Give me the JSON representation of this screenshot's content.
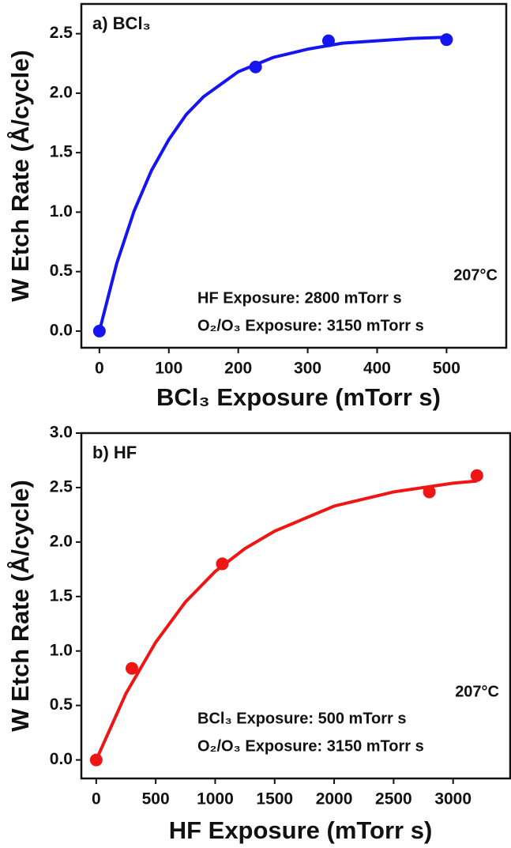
{
  "chart_data": [
    {
      "type": "scatter",
      "title": "a) BCl₃",
      "x_label": "BCl₃ Exposure (mTorr s)",
      "y_label": "W Etch Rate (Å/cycle)",
      "annotations": [
        "207°C",
        "HF Exposure: 2800 mTorr s",
        "O₂/O₃ Exposure: 3150 mTorr s"
      ],
      "xlim": [
        -26,
        586
      ],
      "ylim": [
        -0.14,
        2.75
      ],
      "xticks": [
        0,
        100,
        200,
        300,
        400,
        500
      ],
      "yticks": [
        {
          "value": 0,
          "label": "0.0"
        },
        0.5,
        {
          "value": 1,
          "label": "1.0"
        },
        1.5,
        {
          "value": 2,
          "label": "2.0"
        },
        2.5
      ],
      "series": [
        {
          "mode": "lines",
          "color": "#1515f0",
          "x": [
            0,
            25,
            50,
            75,
            100,
            125,
            150,
            200,
            250,
            300,
            350,
            400,
            450,
            500
          ],
          "values": [
            0,
            0.57,
            1.01,
            1.35,
            1.61,
            1.82,
            1.97,
            2.18,
            2.3,
            2.37,
            2.42,
            2.44,
            2.46,
            2.47
          ]
        },
        {
          "mode": "markers",
          "color": "#1515f0",
          "x": [
            0,
            225,
            330,
            500
          ],
          "values": [
            0,
            2.22,
            2.44,
            2.45
          ]
        }
      ]
    },
    {
      "type": "scatter",
      "title": "b) HF",
      "x_label": "HF Exposure (mTorr s)",
      "y_label": "W Etch Rate (Å/cycle)",
      "annotations": [
        "207°C",
        "BCl₃ Exposure: 500 mTorr s",
        "O₂/O₃ Exposure: 3150 mTorr s"
      ],
      "xlim": [
        -125,
        3480
      ],
      "ylim": [
        -0.17,
        3.0
      ],
      "xticks": [
        0,
        500,
        1000,
        1500,
        2000,
        2500,
        3000
      ],
      "yticks": [
        {
          "value": 0,
          "label": "0.0"
        },
        0.5,
        {
          "value": 1,
          "label": "1.0"
        },
        1.5,
        {
          "value": 2,
          "label": "2.0"
        },
        2.5,
        {
          "value": 3,
          "label": "3.0"
        }
      ],
      "series": [
        {
          "mode": "lines",
          "color": "#f01515",
          "x": [
            0,
            250,
            500,
            750,
            1000,
            1250,
            1500,
            2000,
            2500,
            3000,
            3200
          ],
          "values": [
            0,
            0.61,
            1.08,
            1.45,
            1.73,
            1.94,
            2.1,
            2.33,
            2.46,
            2.54,
            2.56
          ]
        },
        {
          "mode": "markers",
          "color": "#f01515",
          "x": [
            0,
            300,
            1060,
            2800,
            3200
          ],
          "values": [
            0,
            0.84,
            1.8,
            2.46,
            2.61
          ]
        }
      ]
    }
  ]
}
